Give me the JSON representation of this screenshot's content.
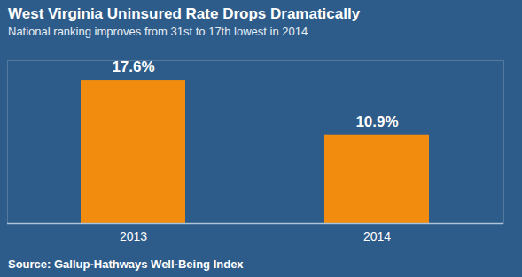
{
  "chart_data": {
    "type": "bar",
    "title": "West Virginia Uninsured Rate Drops Dramatically",
    "subtitle": "National ranking improves from 31st to 17th lowest in 2014",
    "caption": "Source: Gallup-Hathways Well-Being Index",
    "categories": [
      "2013",
      "2014"
    ],
    "values": [
      17.6,
      10.9
    ],
    "value_labels": [
      "17.6%",
      "10.9%"
    ],
    "color": "#f28c0e",
    "ylim": [
      0,
      20
    ],
    "data_labels": true,
    "tick_labels": "x",
    "grid": false
  }
}
